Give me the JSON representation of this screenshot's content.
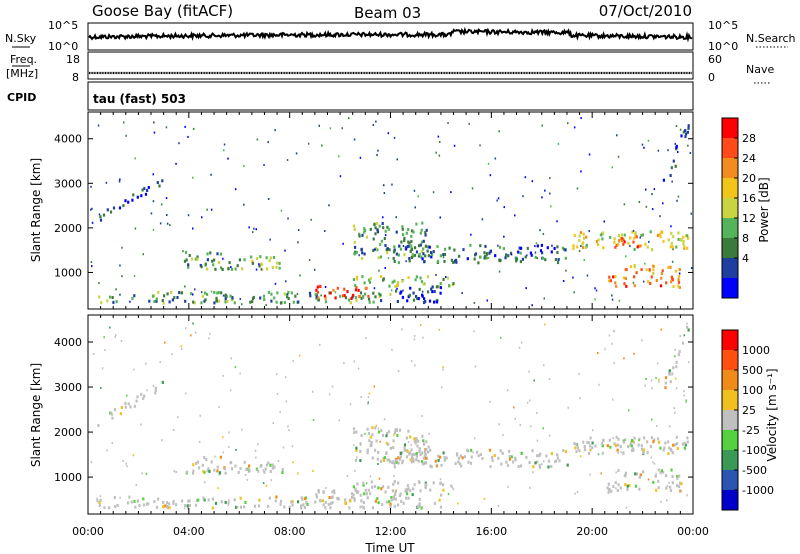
{
  "header": {
    "station": "Goose Bay (fitACF)",
    "beam": "Beam 03",
    "date": "07/Oct/2010"
  },
  "status_panels": {
    "nsky_label": "N.Sky",
    "nsky_ticks": [
      "10^5",
      "10^0"
    ],
    "nsearch_label": "N.Search",
    "nsearch_ticks": [
      "10^5",
      "10^0"
    ],
    "freq_label": "Freq.",
    "freq_unit": "[MHz]",
    "freq_ticks": [
      "18",
      "8"
    ],
    "nave_label": "Nave",
    "nave_ticks": [
      "60",
      "0"
    ],
    "cpid_label": "CPID",
    "cpid_value": "tau (fast) 503"
  },
  "chart_data": [
    {
      "type": "heatmap",
      "name": "power",
      "ylabel": "Slant Range [km]",
      "yticks": [
        "4000",
        "3000",
        "2000",
        "1000"
      ],
      "ylim": [
        180,
        4600
      ],
      "xlim": [
        0,
        24
      ],
      "colorbar": {
        "label": "Power [dB]",
        "ticks": [
          "28",
          "24",
          "20",
          "16",
          "12",
          "8",
          "4"
        ],
        "colors": [
          "#0000ff",
          "#1e3fa0",
          "#3a7a3a",
          "#55b45a",
          "#c8d440",
          "#f2c51a",
          "#f28c1e",
          "#ff4a1a",
          "#ff0000"
        ]
      },
      "regions": [
        {
          "t0": 0.3,
          "t1": 3.0,
          "r0": 2050,
          "r1": 2250,
          "slope": 900,
          "level": 1
        },
        {
          "t0": 3.8,
          "t1": 5.5,
          "r0": 1050,
          "r1": 1450,
          "slope": 0,
          "level": 3
        },
        {
          "t0": 5.5,
          "t1": 7.8,
          "r0": 1050,
          "r1": 1350,
          "slope": 0,
          "level": 4
        },
        {
          "t0": 0.3,
          "t1": 12.0,
          "r0": 300,
          "r1": 550,
          "slope": 0,
          "level": 3
        },
        {
          "t0": 9.0,
          "t1": 11.2,
          "r0": 400,
          "r1": 700,
          "slope": 0,
          "level": 8
        },
        {
          "t0": 10.5,
          "t1": 14.5,
          "r0": 650,
          "r1": 900,
          "slope": 0,
          "level": 4
        },
        {
          "t0": 10.5,
          "t1": 13.5,
          "r0": 1300,
          "r1": 2100,
          "slope": 0,
          "level": 3
        },
        {
          "t0": 12.0,
          "t1": 19.0,
          "r0": 1200,
          "r1": 1600,
          "slope": 0,
          "level": 2
        },
        {
          "t0": 19.2,
          "t1": 23.8,
          "r0": 1500,
          "r1": 1900,
          "slope": 0,
          "level": 5
        },
        {
          "t0": 20.8,
          "t1": 22.0,
          "r0": 1550,
          "r1": 1850,
          "slope": 0,
          "level": 7
        },
        {
          "t0": 20.5,
          "t1": 23.5,
          "r0": 650,
          "r1": 900,
          "slope": 0,
          "level": 7
        },
        {
          "t0": 21.0,
          "t1": 23.5,
          "r0": 950,
          "r1": 1150,
          "slope": 0,
          "level": 6
        },
        {
          "t0": 22.8,
          "t1": 23.8,
          "r0": 2700,
          "r1": 3100,
          "slope": 1400,
          "level": 1
        },
        {
          "t0": 12.0,
          "t1": 14.0,
          "r0": 300,
          "r1": 700,
          "slope": 0,
          "level": 1
        }
      ]
    },
    {
      "type": "heatmap",
      "name": "velocity",
      "ylabel": "Slant Range [km]",
      "yticks": [
        "4000",
        "3000",
        "2000",
        "1000"
      ],
      "xlabel": "Time UT",
      "xticks": [
        "00:00",
        "04:00",
        "08:00",
        "12:00",
        "16:00",
        "20:00",
        "00:00"
      ],
      "ylim": [
        180,
        4600
      ],
      "xlim": [
        0,
        24
      ],
      "colorbar": {
        "label": "Velocity [m s⁻¹]",
        "ticks": [
          "1000",
          "500",
          "100",
          "25",
          "-25",
          "-100",
          "-500",
          "-1000"
        ],
        "colors": [
          "#0000cc",
          "#2a55b0",
          "#3a9a55",
          "#55d040",
          "#c0c0c0",
          "#f0c020",
          "#f08a18",
          "#ff5010",
          "#ff0000"
        ]
      }
    }
  ]
}
